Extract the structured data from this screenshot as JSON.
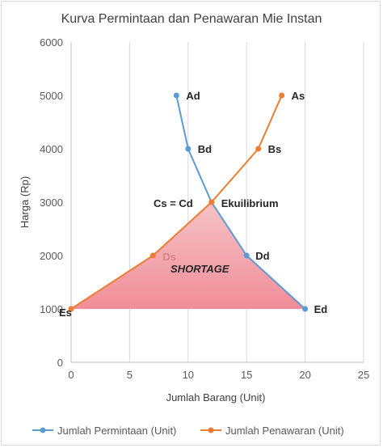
{
  "chart_data": {
    "type": "line",
    "title": "Kurva Permintaan dan Penawaran Mie Instan",
    "xlabel": "Jumlah Barang (Unit)",
    "ylabel": "Harga (Rp)",
    "xlim": [
      0,
      25
    ],
    "ylim": [
      0,
      6000
    ],
    "xticks": [
      "0",
      "5",
      "10",
      "15",
      "20",
      "25"
    ],
    "yticks": [
      "0",
      "1000",
      "2000",
      "3000",
      "4000",
      "5000",
      "6000"
    ],
    "grid": "vertical",
    "legend_position": "bottom",
    "series": [
      {
        "name": "Jumlah Permintaan (Unit)",
        "color": "#5b9bd5",
        "points": [
          {
            "x": 9,
            "y": 5000,
            "label": "Ad"
          },
          {
            "x": 10,
            "y": 4000,
            "label": "Bd"
          },
          {
            "x": 12,
            "y": 3000,
            "label": "Cs = Cd"
          },
          {
            "x": 15,
            "y": 2000,
            "label": "Dd"
          },
          {
            "x": 20,
            "y": 1000,
            "label": "Ed"
          }
        ]
      },
      {
        "name": "Jumlah Penawaran (Unit)",
        "color": "#ed7d31",
        "points": [
          {
            "x": 0,
            "y": 1000,
            "label": "Es"
          },
          {
            "x": 7,
            "y": 2000,
            "label": "Ds"
          },
          {
            "x": 12,
            "y": 3000,
            "label": "Ekuilibrium"
          },
          {
            "x": 16,
            "y": 4000,
            "label": "Bs"
          },
          {
            "x": 18,
            "y": 5000,
            "label": "As"
          }
        ]
      }
    ],
    "shaded_region": {
      "label": "SHORTAGE",
      "vertices": [
        [
          0,
          1000
        ],
        [
          7,
          2000
        ],
        [
          12,
          3000
        ],
        [
          15,
          2000
        ],
        [
          20,
          1000
        ]
      ],
      "color": "#f4a0a8"
    }
  }
}
